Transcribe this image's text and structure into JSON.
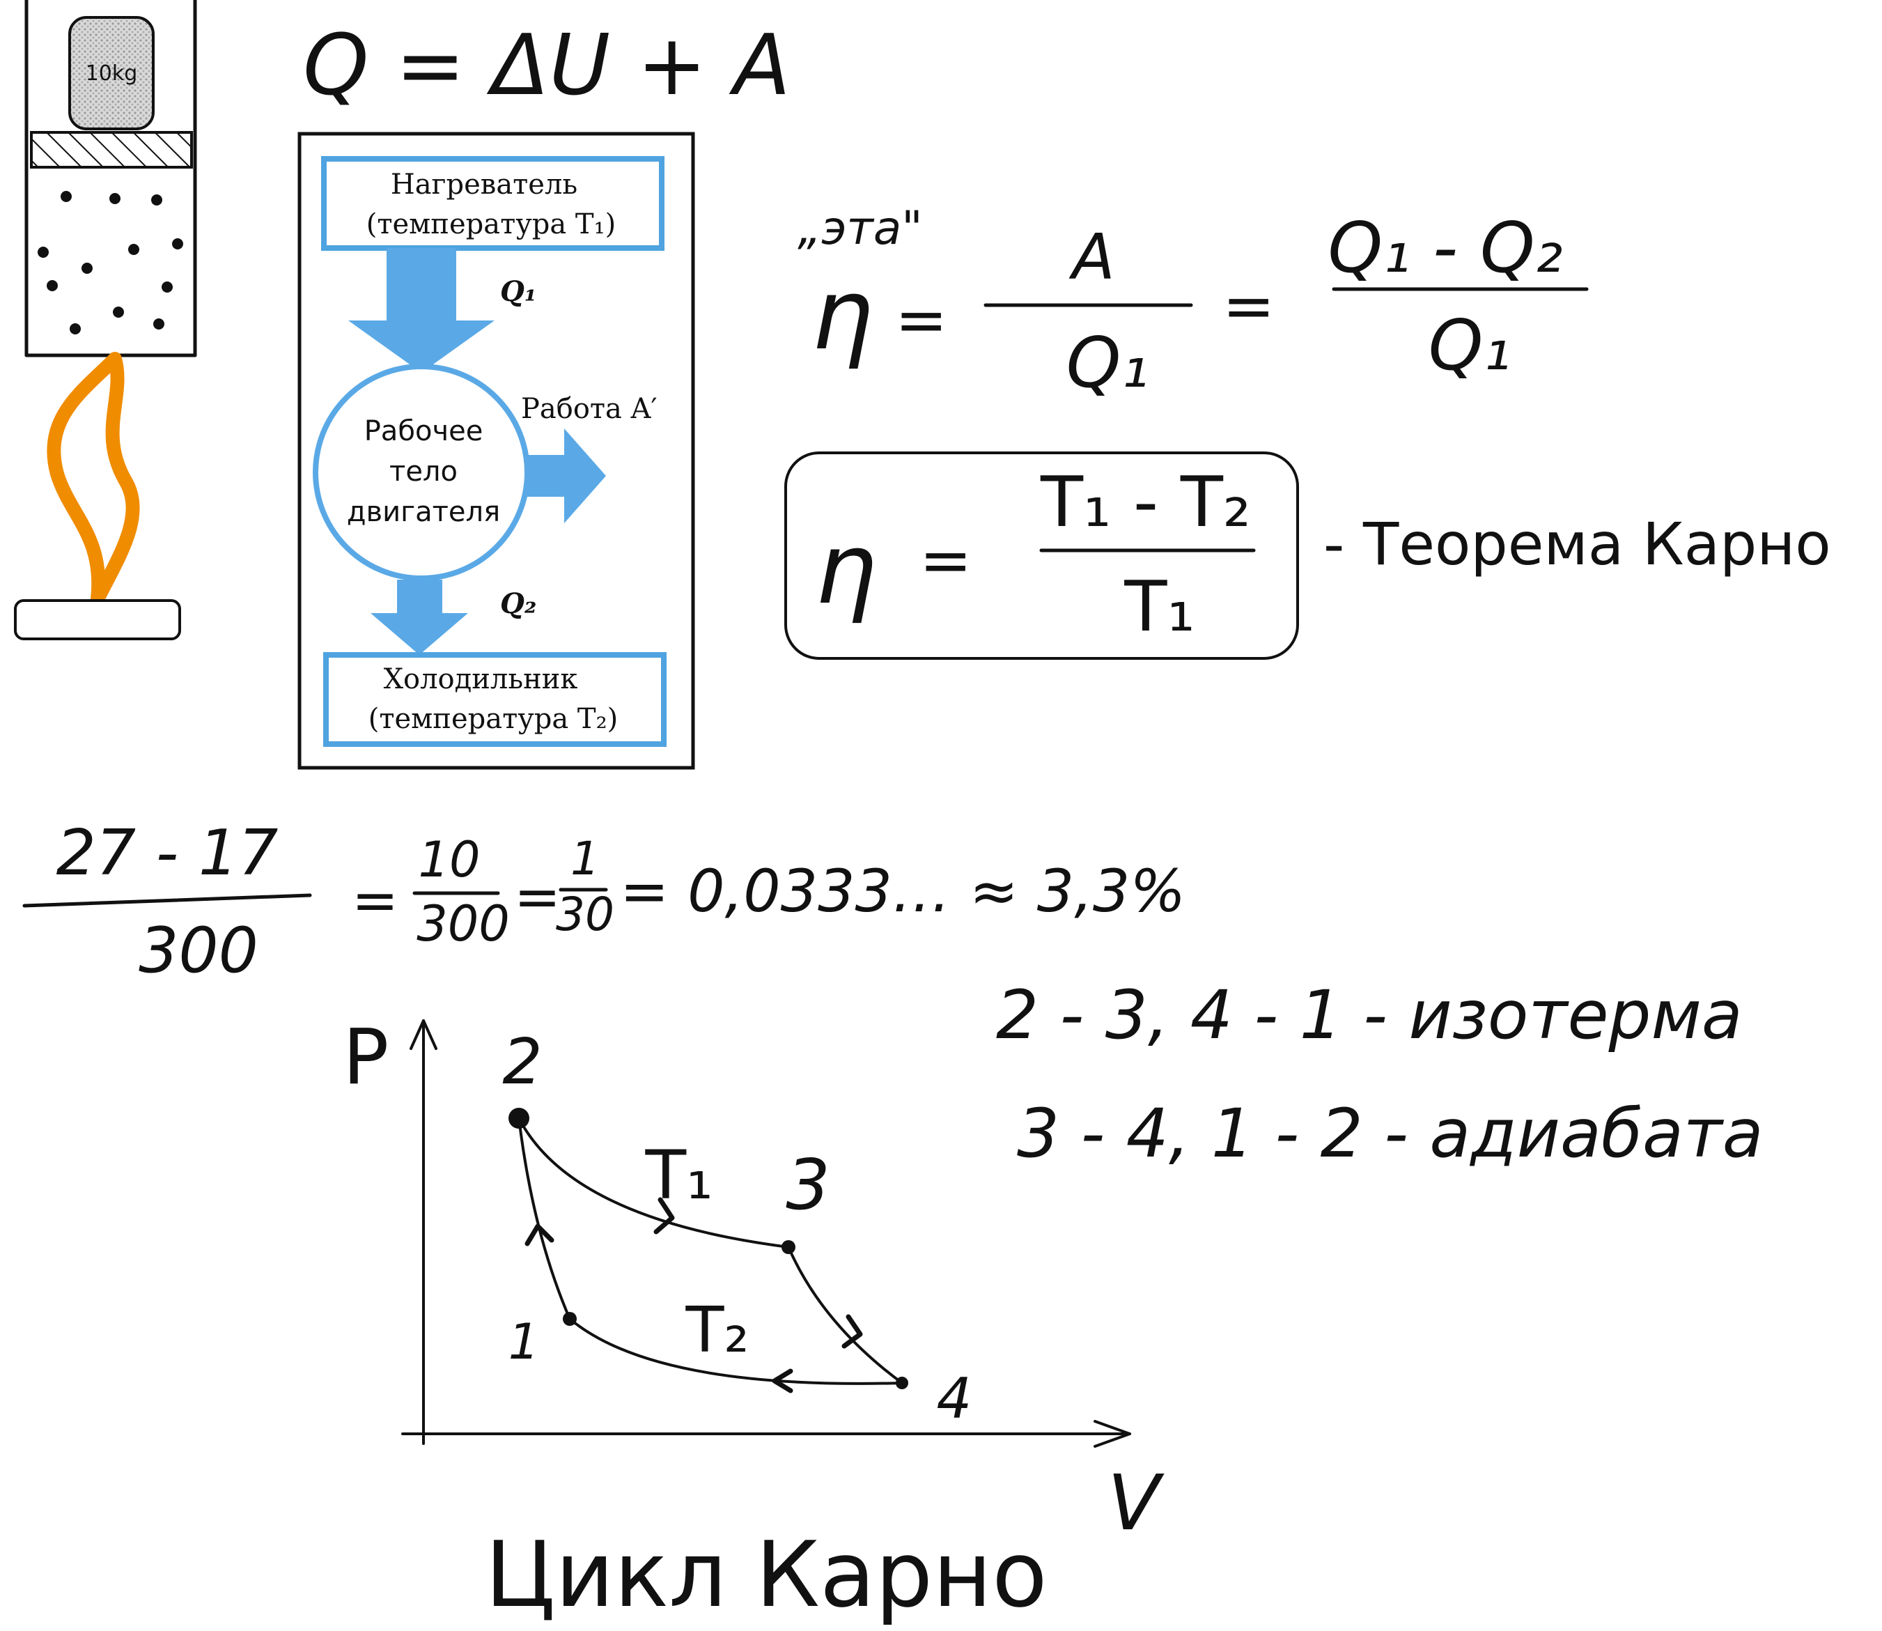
{
  "colors": {
    "ink": "#111111",
    "flame": "#f08c00",
    "scheme_blue": "#5aa9e6",
    "box_border": "#4fa3e0"
  },
  "apparatus": {
    "weight_label": "10kg"
  },
  "formula_first_law": "Q = ΔU + A",
  "scheme": {
    "heater_line1": "Нагреватель",
    "heater_line2": "(температура  T₁)",
    "q1_label": "Q₁",
    "body_line1": "Рабочее",
    "body_line2": "тело",
    "body_line3": "двигателя",
    "work_label": "Работа  A′",
    "q2_label": "Q₂",
    "cooler_line1": "Холодильник",
    "cooler_line2": "(температура  T₂)"
  },
  "efficiency": {
    "eta_name": "„эта\"",
    "eta": "η",
    "eq": "=",
    "frac1_num": "A",
    "frac1_den": "Q₁",
    "frac2_num": "Q₁ - Q₂",
    "frac2_den": "Q₁"
  },
  "carnot": {
    "eta": "η",
    "eq": "=",
    "num": "T₁ - T₂",
    "den": "T₁",
    "caption": "- Теорема Карно"
  },
  "calc": {
    "num": "27 - 17",
    "den": "300",
    "eq1": "=",
    "num2": "10",
    "den2": "300",
    "eq2": "=",
    "num3": "1",
    "den3": "30",
    "result": "= 0,0333… ≈ 3,3%"
  },
  "processes": {
    "line1": "2 - 3, 4 - 1 - изотерма",
    "line2": "3 - 4, 1 - 2 - адиабата"
  },
  "pv_diagram": {
    "p_label": "P",
    "v_label": "V",
    "point_labels": [
      "1",
      "2",
      "3",
      "4"
    ],
    "t1_label": "T₁",
    "t2_label": "T₂",
    "title": "Цикл Карно"
  }
}
